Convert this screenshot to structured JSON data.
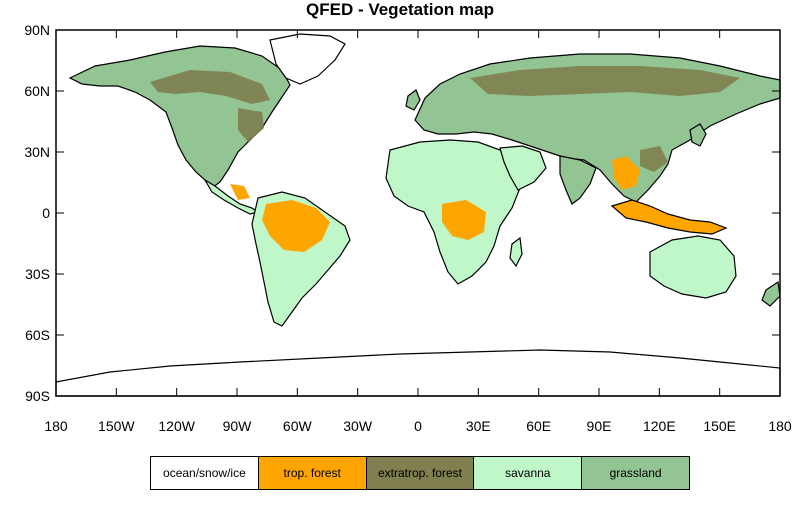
{
  "map": {
    "title": "QFED - Vegetation map",
    "lat_labels": [
      "90N",
      "60N",
      "30N",
      "0",
      "30S",
      "60S",
      "90S"
    ],
    "lon_labels": [
      "180",
      "150W",
      "120W",
      "90W",
      "60W",
      "30W",
      "0",
      "30E",
      "60E",
      "90E",
      "120E",
      "150E",
      "180"
    ],
    "lat_range": [
      -90,
      90
    ],
    "lon_range": [
      -180,
      180
    ],
    "colors": {
      "ocean": "#ffffff",
      "trop_forest": "#ffa500",
      "extratrop_forest": "#7f7f4f",
      "savanna": "#bff7c9",
      "grassland": "#93c493",
      "coastline": "#000000"
    }
  },
  "legend": {
    "items": [
      {
        "label": "ocean/snow/ice",
        "color": "#ffffff"
      },
      {
        "label": "trop. forest",
        "color": "#ffa500"
      },
      {
        "label": "extratrop. forest",
        "color": "#7f7f4f"
      },
      {
        "label": "savanna",
        "color": "#bff7c9"
      },
      {
        "label": "grassland",
        "color": "#93c493"
      }
    ]
  }
}
